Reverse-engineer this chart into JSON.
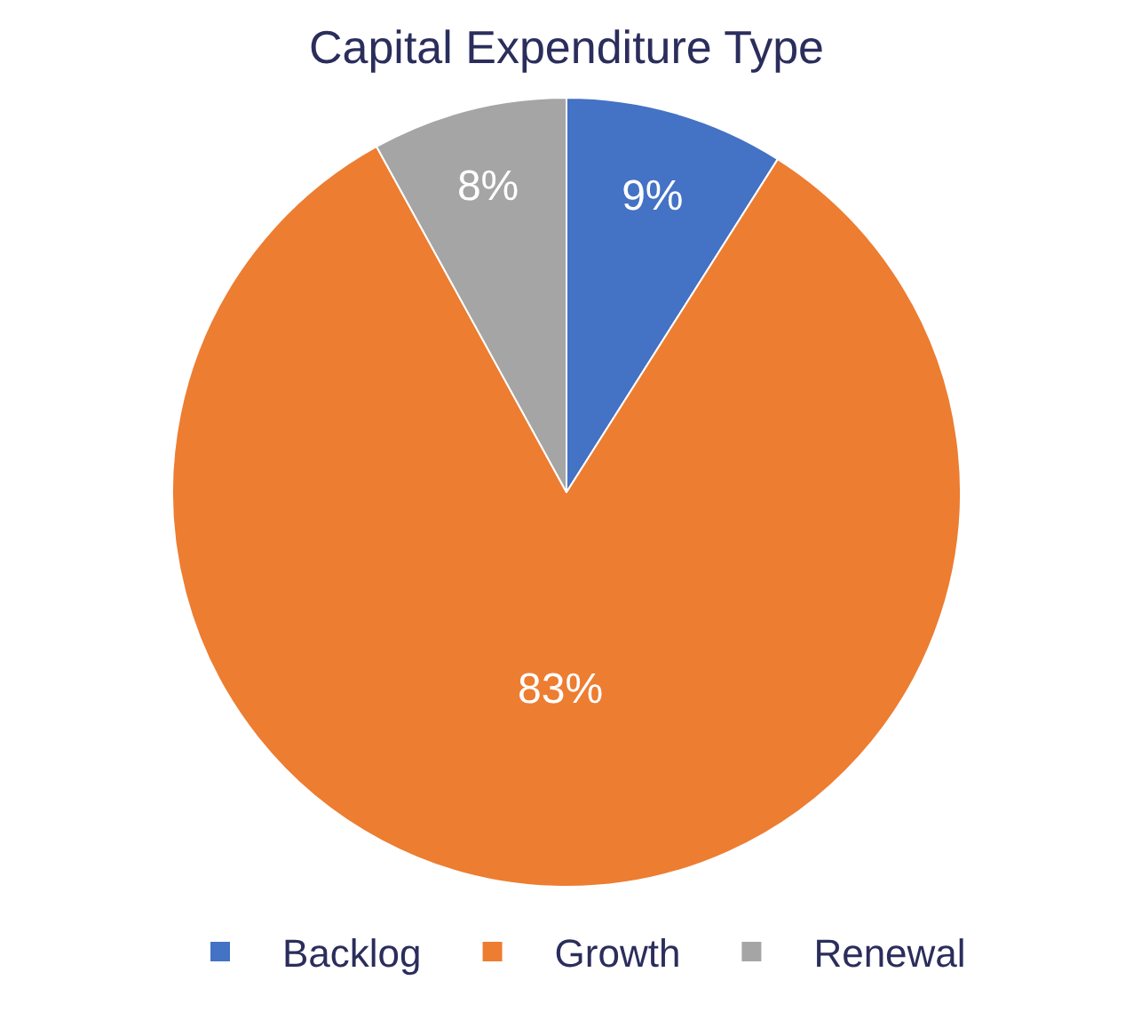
{
  "chart_data": {
    "type": "pie",
    "title": "Capital Expenditure Type",
    "categories": [
      "Backlog",
      "Growth",
      "Renewal"
    ],
    "values": [
      9,
      83,
      8
    ],
    "value_labels": [
      "9%",
      "83%",
      "8%"
    ],
    "colors": [
      "#4472c4",
      "#ed7d31",
      "#a5a5a5"
    ],
    "legend": "bottom"
  }
}
